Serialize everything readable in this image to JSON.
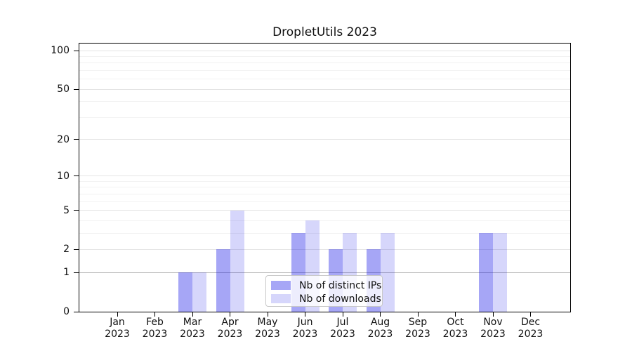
{
  "chart_data": {
    "type": "bar",
    "title": "DropletUtils 2023",
    "categories": [
      "Jan",
      "Feb",
      "Mar",
      "Apr",
      "May",
      "Jun",
      "Jul",
      "Aug",
      "Sep",
      "Oct",
      "Nov",
      "Dec"
    ],
    "category_year": "2023",
    "series": [
      {
        "name": "Nb of distinct IPs",
        "color": "#0000E659",
        "values": [
          0,
          0,
          1,
          2,
          0,
          3,
          2,
          2,
          0,
          0,
          3,
          0
        ]
      },
      {
        "name": "Nb of downloads",
        "color": "#0000E629",
        "values": [
          0,
          0,
          1,
          5,
          0,
          4,
          3,
          3,
          0,
          0,
          3,
          0
        ]
      }
    ],
    "xlabel": "",
    "ylabel": "",
    "yscale": "log1p",
    "ylim": [
      0,
      113.5
    ],
    "y_major_ticks": [
      0,
      1,
      2,
      5,
      10,
      20,
      50,
      100
    ],
    "y_tick_labels": [
      "0",
      "1",
      "2",
      "5",
      "10",
      "20",
      "50",
      "100"
    ],
    "y_minor_gridlines": [
      3,
      4,
      6,
      7,
      8,
      9,
      30,
      40,
      60,
      70,
      80,
      90
    ],
    "grid": {
      "on": true,
      "major_color": "#e4e4e4",
      "minor_color": "#f2f2f2",
      "baseline_value": 1,
      "baseline_color": "#b4b4b4"
    },
    "legend": {
      "position": "lower center",
      "entries": [
        "Nb of distinct IPs",
        "Nb of downloads"
      ]
    },
    "axis_color": "#000000",
    "background": "#ffffff"
  }
}
